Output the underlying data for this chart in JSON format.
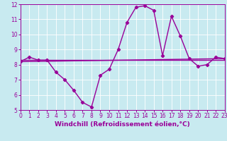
{
  "xlabel": "Windchill (Refroidissement éolien,°C)",
  "ylabel": "",
  "bg_color": "#c8eaf0",
  "line_color": "#990099",
  "xmin": 0,
  "xmax": 23,
  "ymin": 5,
  "ymax": 12,
  "yticks": [
    5,
    6,
    7,
    8,
    9,
    10,
    11,
    12
  ],
  "xticks": [
    0,
    1,
    2,
    3,
    4,
    5,
    6,
    7,
    8,
    9,
    10,
    11,
    12,
    13,
    14,
    15,
    16,
    17,
    18,
    19,
    20,
    21,
    22,
    23
  ],
  "main_series_x": [
    0,
    1,
    2,
    3,
    4,
    5,
    6,
    7,
    8,
    9,
    10,
    11,
    12,
    13,
    14,
    15,
    16,
    17,
    18,
    19,
    20,
    21,
    22,
    23
  ],
  "main_series_y": [
    8.2,
    8.5,
    8.3,
    8.3,
    7.5,
    7.0,
    6.3,
    5.5,
    5.2,
    7.3,
    7.7,
    9.0,
    10.8,
    11.8,
    11.9,
    11.6,
    8.6,
    11.2,
    9.9,
    8.4,
    7.9,
    8.0,
    8.5,
    8.4
  ],
  "trend_series_x": [
    0,
    23
  ],
  "trend_series_y": [
    8.2,
    8.4
  ],
  "flat_line_y": 8.3,
  "marker": "D",
  "marker_size": 2.2,
  "line_width": 1.0,
  "grid_color": "#ffffff",
  "tick_fontsize": 5.5,
  "xlabel_fontsize": 6.5,
  "xlabel_fontweight": "bold"
}
